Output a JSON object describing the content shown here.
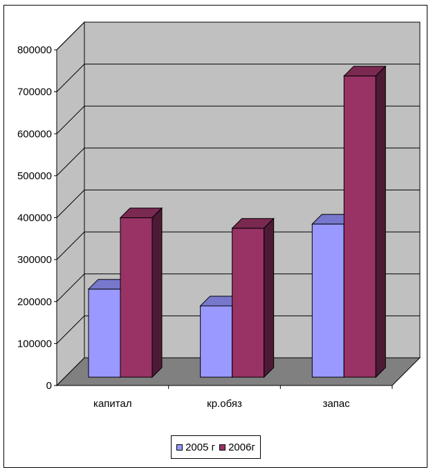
{
  "chart_data": {
    "type": "bar",
    "categories": [
      "капитал",
      "кр.обяз",
      "запас"
    ],
    "series": [
      {
        "name": "2005 г",
        "values": [
          210000,
          170000,
          365000
        ],
        "color": "#9999ff",
        "top_color": "#7777cc",
        "side_color": "#6666aa"
      },
      {
        "name": "2006г",
        "values": [
          380000,
          355000,
          718000
        ],
        "color": "#993366",
        "top_color": "#7a2950",
        "side_color": "#4d1a35"
      }
    ],
    "yticks": [
      "0",
      "100000",
      "200000",
      "300000",
      "400000",
      "500000",
      "600000",
      "700000",
      "800000"
    ],
    "ylim": [
      0,
      800000
    ],
    "grid": true,
    "legend_position": "bottom",
    "wall_color": "#c0c0c0",
    "floor_color": "#808080"
  }
}
